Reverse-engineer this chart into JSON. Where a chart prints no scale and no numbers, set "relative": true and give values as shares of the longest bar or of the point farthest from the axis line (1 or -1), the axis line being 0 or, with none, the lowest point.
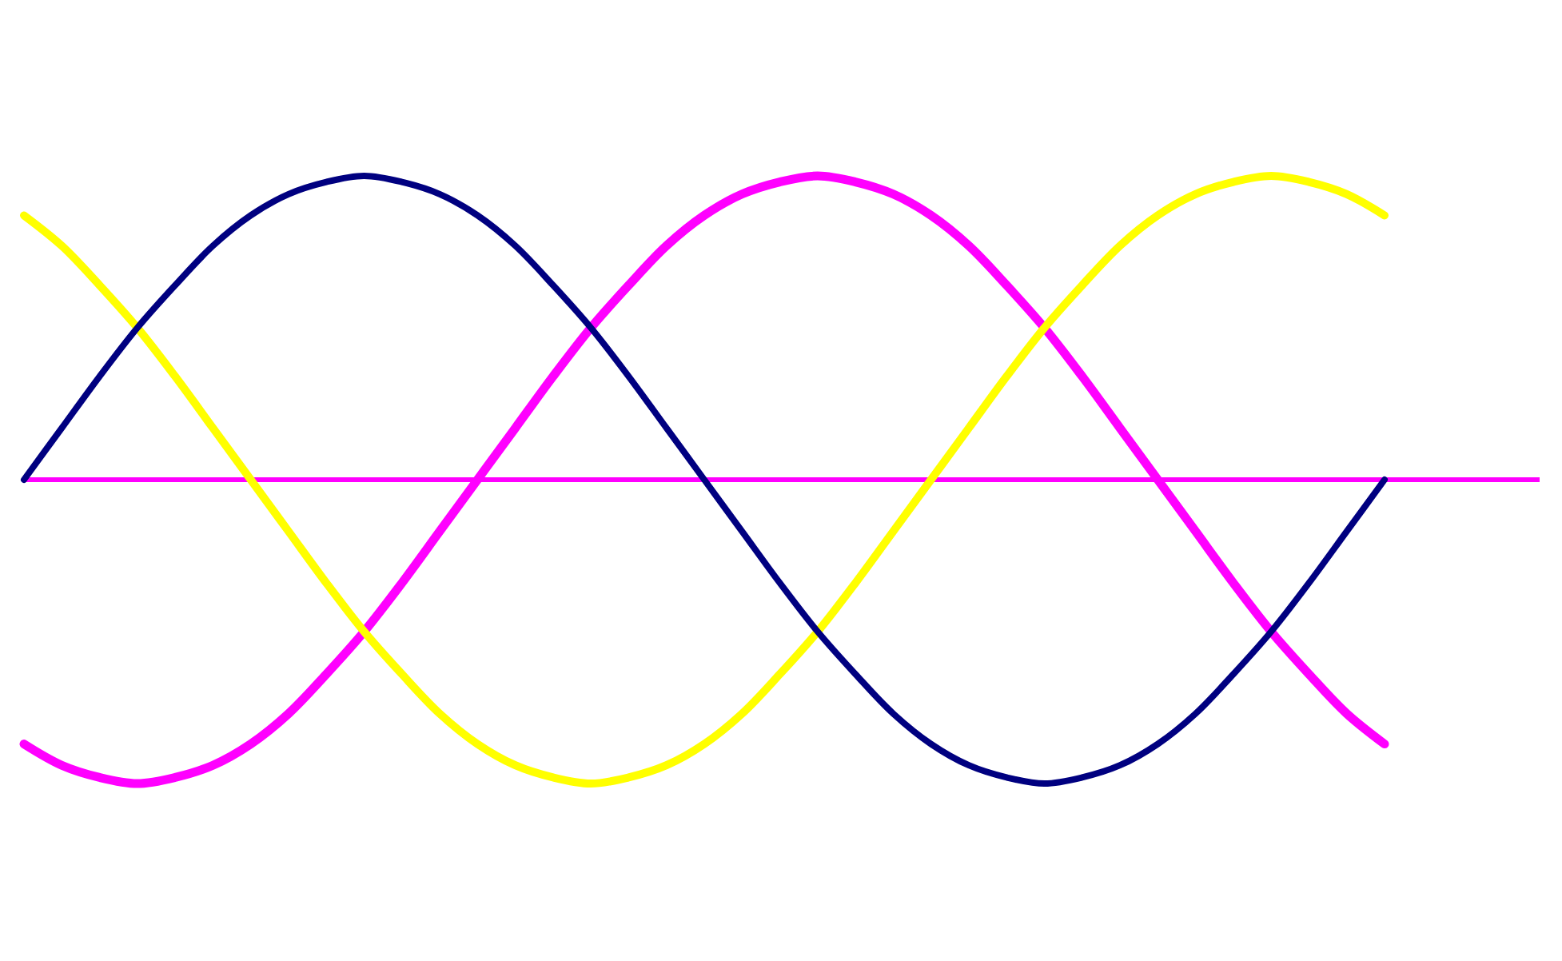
{
  "chart_data": {
    "type": "line",
    "relative": true,
    "categories": [
      null,
      null,
      null,
      null,
      null,
      null,
      null,
      null,
      null,
      null,
      null,
      null,
      null,
      null,
      null,
      null,
      null,
      null,
      null,
      null,
      null,
      null,
      null,
      null,
      null,
      null,
      null,
      null,
      null,
      null,
      null,
      null,
      null,
      null,
      null,
      null,
      null
    ],
    "series": [
      {
        "color": "#ff00ff",
        "values": [
          -0.87,
          -0.94,
          -0.98,
          -1,
          -0.98,
          -0.94,
          -0.87,
          -0.77,
          -0.64,
          -0.5,
          -0.34,
          -0.17,
          0,
          0.17,
          0.34,
          0.5,
          0.64,
          0.77,
          0.87,
          0.94,
          0.98,
          1,
          0.98,
          0.94,
          0.87,
          0.77,
          0.64,
          0.5,
          0.34,
          0.17,
          0,
          -0.17,
          -0.34,
          -0.5,
          -0.64,
          -0.77,
          -0.87
        ]
      },
      {
        "color": "#ffff00",
        "values": [
          0.87,
          0.77,
          0.64,
          0.5,
          0.34,
          0.17,
          0,
          -0.17,
          -0.34,
          -0.5,
          -0.64,
          -0.77,
          -0.87,
          -0.94,
          -0.98,
          -1,
          -0.98,
          -0.94,
          -0.87,
          -0.77,
          -0.64,
          -0.5,
          -0.34,
          -0.17,
          0,
          0.17,
          0.34,
          0.5,
          0.64,
          0.77,
          0.87,
          0.94,
          0.98,
          1,
          0.98,
          0.94,
          0.87
        ]
      },
      {
        "color": "#000080",
        "values": [
          0,
          0.17,
          0.34,
          0.5,
          0.64,
          0.77,
          0.87,
          0.94,
          0.98,
          1,
          0.98,
          0.94,
          0.87,
          0.77,
          0.64,
          0.5,
          0.34,
          0.17,
          0,
          -0.17,
          -0.34,
          -0.5,
          -0.64,
          -0.77,
          -0.87,
          -0.94,
          -0.98,
          -1,
          -0.98,
          -0.94,
          -0.87,
          -0.77,
          -0.64,
          -0.5,
          -0.34,
          -0.17,
          0
        ]
      }
    ],
    "ref_lines": [
      {
        "axis": "y",
        "value": 0,
        "color": "#ff00ff"
      }
    ],
    "marker": "none",
    "line_style": "solid"
  }
}
